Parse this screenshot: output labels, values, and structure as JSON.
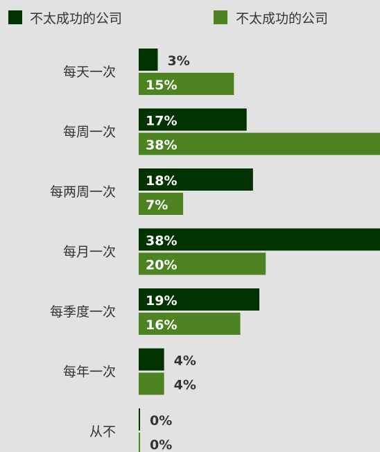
{
  "chart_data": {
    "type": "bar",
    "orientation": "horizontal",
    "categories": [
      "每天一次",
      "每周一次",
      "每两周一次",
      "每月一次",
      "每季度一次",
      "每年一次",
      "从不"
    ],
    "series": [
      {
        "name": "不太成功的公司",
        "color": "#003300",
        "values": [
          3,
          17,
          18,
          38,
          19,
          4,
          0
        ],
        "labels": [
          "3%",
          "17%",
          "18%",
          "38%",
          "19%",
          "4%",
          "0%"
        ]
      },
      {
        "name": "不太成功的公司",
        "color": "#4d8320",
        "values": [
          15,
          38,
          7,
          20,
          16,
          4,
          0
        ],
        "labels": [
          "15%",
          "38%",
          "7%",
          "20%",
          "16%",
          "4%",
          "0%"
        ]
      }
    ],
    "xlim": [
      0,
      38
    ],
    "legend_position": "top",
    "grid": false
  }
}
